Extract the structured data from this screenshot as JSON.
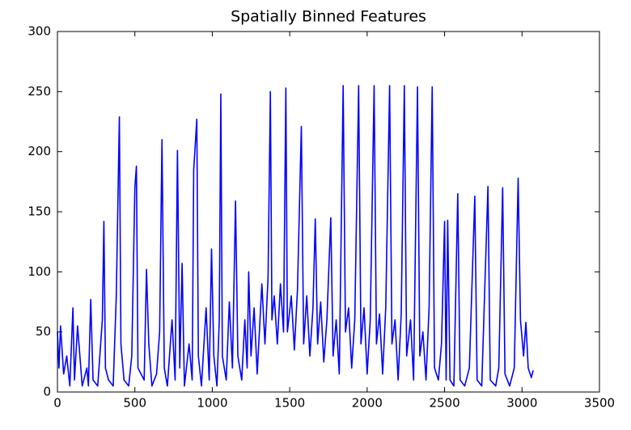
{
  "chart_data": {
    "type": "line",
    "title": "Spatially Binned Features",
    "x": [
      0,
      10,
      20,
      40,
      60,
      80,
      100,
      110,
      130,
      160,
      190,
      200,
      215,
      230,
      260,
      290,
      300,
      310,
      330,
      360,
      380,
      400,
      410,
      430,
      460,
      480,
      500,
      510,
      520,
      540,
      560,
      575,
      590,
      610,
      640,
      660,
      675,
      690,
      710,
      740,
      760,
      775,
      790,
      805,
      820,
      850,
      870,
      880,
      900,
      910,
      930,
      960,
      980,
      995,
      1010,
      1030,
      1045,
      1055,
      1065,
      1090,
      1110,
      1130,
      1150,
      1165,
      1190,
      1210,
      1225,
      1235,
      1250,
      1270,
      1290,
      1320,
      1340,
      1360,
      1375,
      1385,
      1400,
      1420,
      1440,
      1460,
      1475,
      1485,
      1510,
      1530,
      1550,
      1575,
      1590,
      1610,
      1630,
      1650,
      1665,
      1680,
      1700,
      1720,
      1740,
      1765,
      1780,
      1800,
      1820,
      1845,
      1860,
      1880,
      1900,
      1920,
      1945,
      1960,
      1980,
      2000,
      2020,
      2045,
      2060,
      2080,
      2100,
      2120,
      2145,
      2160,
      2180,
      2200,
      2220,
      2240,
      2255,
      2280,
      2300,
      2325,
      2340,
      2360,
      2380,
      2400,
      2420,
      2435,
      2460,
      2480,
      2500,
      2510,
      2520,
      2535,
      2560,
      2585,
      2600,
      2630,
      2660,
      2695,
      2710,
      2740,
      2780,
      2795,
      2830,
      2850,
      2875,
      2890,
      2920,
      2950,
      2975,
      2990,
      3010,
      3025,
      3040,
      3060,
      3072
    ],
    "series": [
      {
        "color": "#0000ff",
        "values": [
          50,
          20,
          55,
          15,
          30,
          5,
          70,
          10,
          55,
          5,
          20,
          5,
          77,
          10,
          5,
          60,
          142,
          20,
          10,
          5,
          80,
          229,
          40,
          10,
          5,
          30,
          170,
          188,
          20,
          15,
          10,
          102,
          40,
          5,
          15,
          50,
          210,
          20,
          5,
          60,
          10,
          201,
          20,
          107,
          5,
          40,
          10,
          185,
          227,
          30,
          5,
          70,
          10,
          119,
          30,
          5,
          60,
          248,
          30,
          10,
          75,
          20,
          159,
          30,
          10,
          60,
          20,
          100,
          30,
          70,
          15,
          90,
          40,
          95,
          250,
          60,
          80,
          40,
          90,
          50,
          253,
          50,
          80,
          35,
          85,
          221,
          40,
          80,
          30,
          70,
          144,
          40,
          75,
          25,
          60,
          145,
          30,
          60,
          15,
          255,
          50,
          70,
          20,
          60,
          255,
          40,
          70,
          15,
          60,
          255,
          40,
          65,
          15,
          70,
          255,
          40,
          60,
          10,
          65,
          255,
          30,
          60,
          10,
          254,
          30,
          50,
          10,
          70,
          254,
          20,
          10,
          40,
          142,
          10,
          143,
          10,
          5,
          165,
          10,
          5,
          20,
          163,
          10,
          5,
          171,
          10,
          5,
          20,
          170,
          15,
          5,
          20,
          178,
          60,
          30,
          58,
          20,
          12,
          18
        ]
      }
    ],
    "xlim": [
      0,
      3500
    ],
    "xticks": [
      0,
      500,
      1000,
      1500,
      2000,
      2500,
      3000,
      3500
    ],
    "ylim": [
      0,
      300
    ],
    "yticks": [
      0,
      50,
      100,
      150,
      200,
      250,
      300
    ]
  }
}
